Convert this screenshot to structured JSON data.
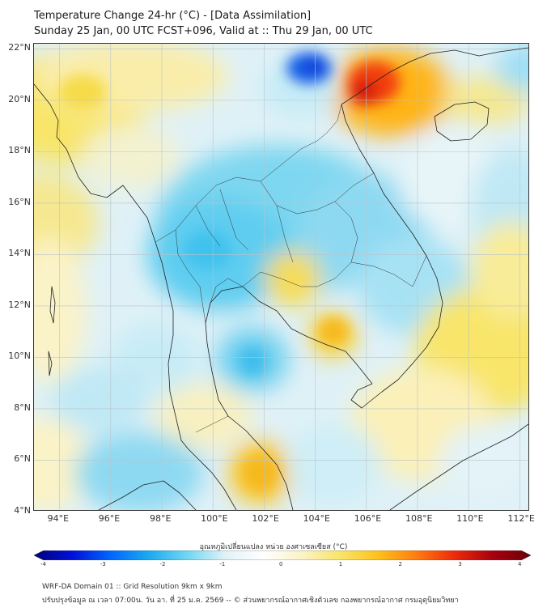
{
  "title": {
    "line1": "Temperature Change 24-hr (°C) - [Data Assimilation]",
    "line2": "Sunday 25 Jan, 00 UTC FCST+096, Valid at :: Thu 29 Jan, 00 UTC"
  },
  "map": {
    "lat_labels": [
      "22°N",
      "20°N",
      "18°N",
      "16°N",
      "14°N",
      "12°N",
      "10°N",
      "8°N",
      "6°N",
      "4°N"
    ],
    "lon_labels": [
      "94°E",
      "96°E",
      "98°E",
      "100°E",
      "102°E",
      "104°E",
      "106°E",
      "108°E",
      "110°E",
      "112°E"
    ],
    "lat_range": [
      4,
      22.2
    ],
    "lon_range": [
      93,
      112.4
    ]
  },
  "colorbar": {
    "title": "อุณหภูมิเปลี่ยนแปลง หน่วย องศาเซลเซียส (°C)",
    "ticks": [
      "-4",
      "-3",
      "-2",
      "-1",
      "0",
      "1",
      "2",
      "3",
      "4"
    ],
    "colors": [
      "#00007a",
      "#0010d8",
      "#0066ff",
      "#1aaaf0",
      "#6fd6f2",
      "#e0f2f8",
      "#ffffff",
      "#faf3c8",
      "#f8e56a",
      "#ffc21a",
      "#ff7d10",
      "#ee2a0a",
      "#a8000e",
      "#6a0008"
    ]
  },
  "footer": {
    "line1": "WRF-DA Domain 01 :: Grid Resolution 9km x 9km",
    "line2": "ปรับปรุงข้อมูล ณ เวลา 07:00น. วัน อา. ที่ 25 ม.ค. 2569 -- © ส่วนพยากรณ์อากาศเชิงตัวเลข กองพยากรณ์อากาศ กรมอุตุนิยมวิทยา"
  }
}
